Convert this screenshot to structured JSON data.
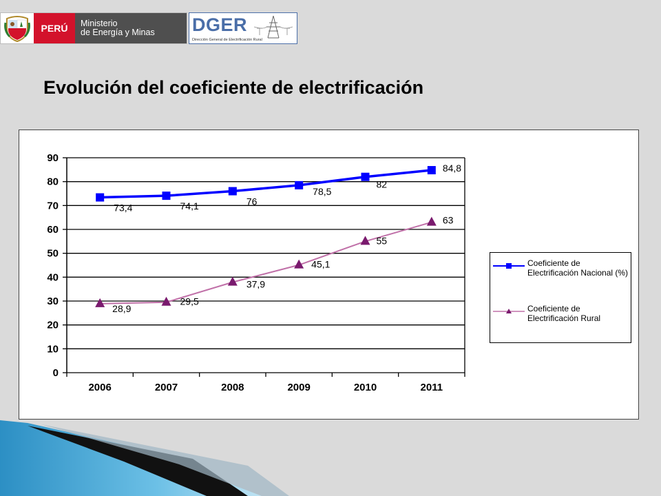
{
  "header": {
    "country": "PERÚ",
    "ministry_line1": "Ministerio",
    "ministry_line2": "de Energía y Minas",
    "dger": "DGER",
    "dger_sub": "Dirección General de Electrificación Rural"
  },
  "title": "Evolución del coeficiente de electrificación",
  "chart_data": {
    "type": "line",
    "title": "",
    "categories": [
      "2006",
      "2007",
      "2008",
      "2009",
      "2010",
      "2011"
    ],
    "ylim": [
      0,
      90
    ],
    "yticks": [
      "0",
      "10",
      "20",
      "30",
      "40",
      "50",
      "60",
      "70",
      "80",
      "90"
    ],
    "grid": true,
    "legend_position": "right",
    "series": [
      {
        "name": "Coeficiente de Electrificación Nacional (%)",
        "values": [
          73.4,
          74.1,
          76,
          78.5,
          82,
          84.8
        ],
        "labels": [
          "73,4",
          "74,1",
          "76",
          "78,5",
          "82",
          "84,8"
        ],
        "color": "#0000ff",
        "marker": "square"
      },
      {
        "name": "Coeficiente de Electrificación Rural",
        "values": [
          28.9,
          29.5,
          37.9,
          45.1,
          55,
          63
        ],
        "labels": [
          "28,9",
          "29,5",
          "37,9",
          "45,1",
          "55",
          "63"
        ],
        "color": "#c070a8",
        "marker_color": "#7a1a6e",
        "marker": "triangle"
      }
    ]
  }
}
